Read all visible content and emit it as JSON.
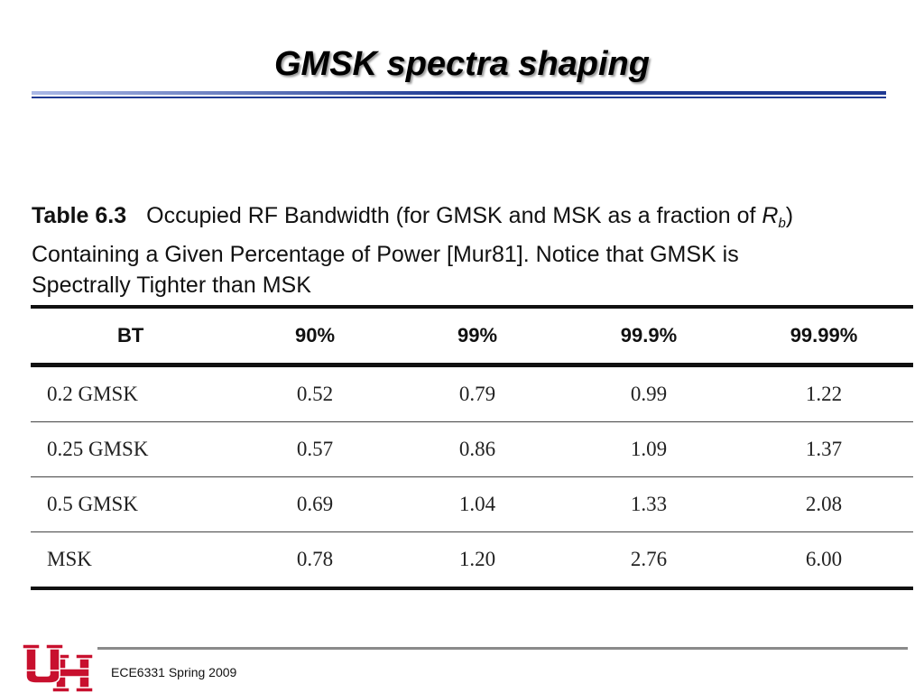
{
  "slide": {
    "title": "GMSK spectra shaping",
    "footer": "ECE6331 Spring 2009"
  },
  "caption": {
    "table_number": "Table 6.3",
    "line1_text": "Occupied RF Bandwidth (for GMSK and MSK as a fraction of",
    "rb_symbol": "R",
    "rb_subscript": "b",
    "line1_end": ")",
    "line2": "Containing a Given Percentage of Power [Mur81]. Notice that GMSK is",
    "line3": "Spectrally Tighter than MSK"
  },
  "table": {
    "headers": [
      "BT",
      "90%",
      "99%",
      "99.9%",
      "99.99%"
    ],
    "rows": [
      [
        "0.2 GMSK",
        "0.52",
        "0.79",
        "0.99",
        "1.22"
      ],
      [
        "0.25 GMSK",
        "0.57",
        "0.86",
        "1.09",
        "1.37"
      ],
      [
        "0.5 GMSK",
        "0.69",
        "1.04",
        "1.33",
        "2.08"
      ],
      [
        "MSK",
        "0.78",
        "1.20",
        "2.76",
        "6.00"
      ]
    ]
  },
  "colors": {
    "title_rule_dark": "#1f3a93",
    "title_rule_light": "#aab8e6",
    "logo_red": "#c8102e",
    "footer_rule": "#8a8a8a"
  },
  "logo": {
    "name": "university-of-houston-uh-logo"
  }
}
